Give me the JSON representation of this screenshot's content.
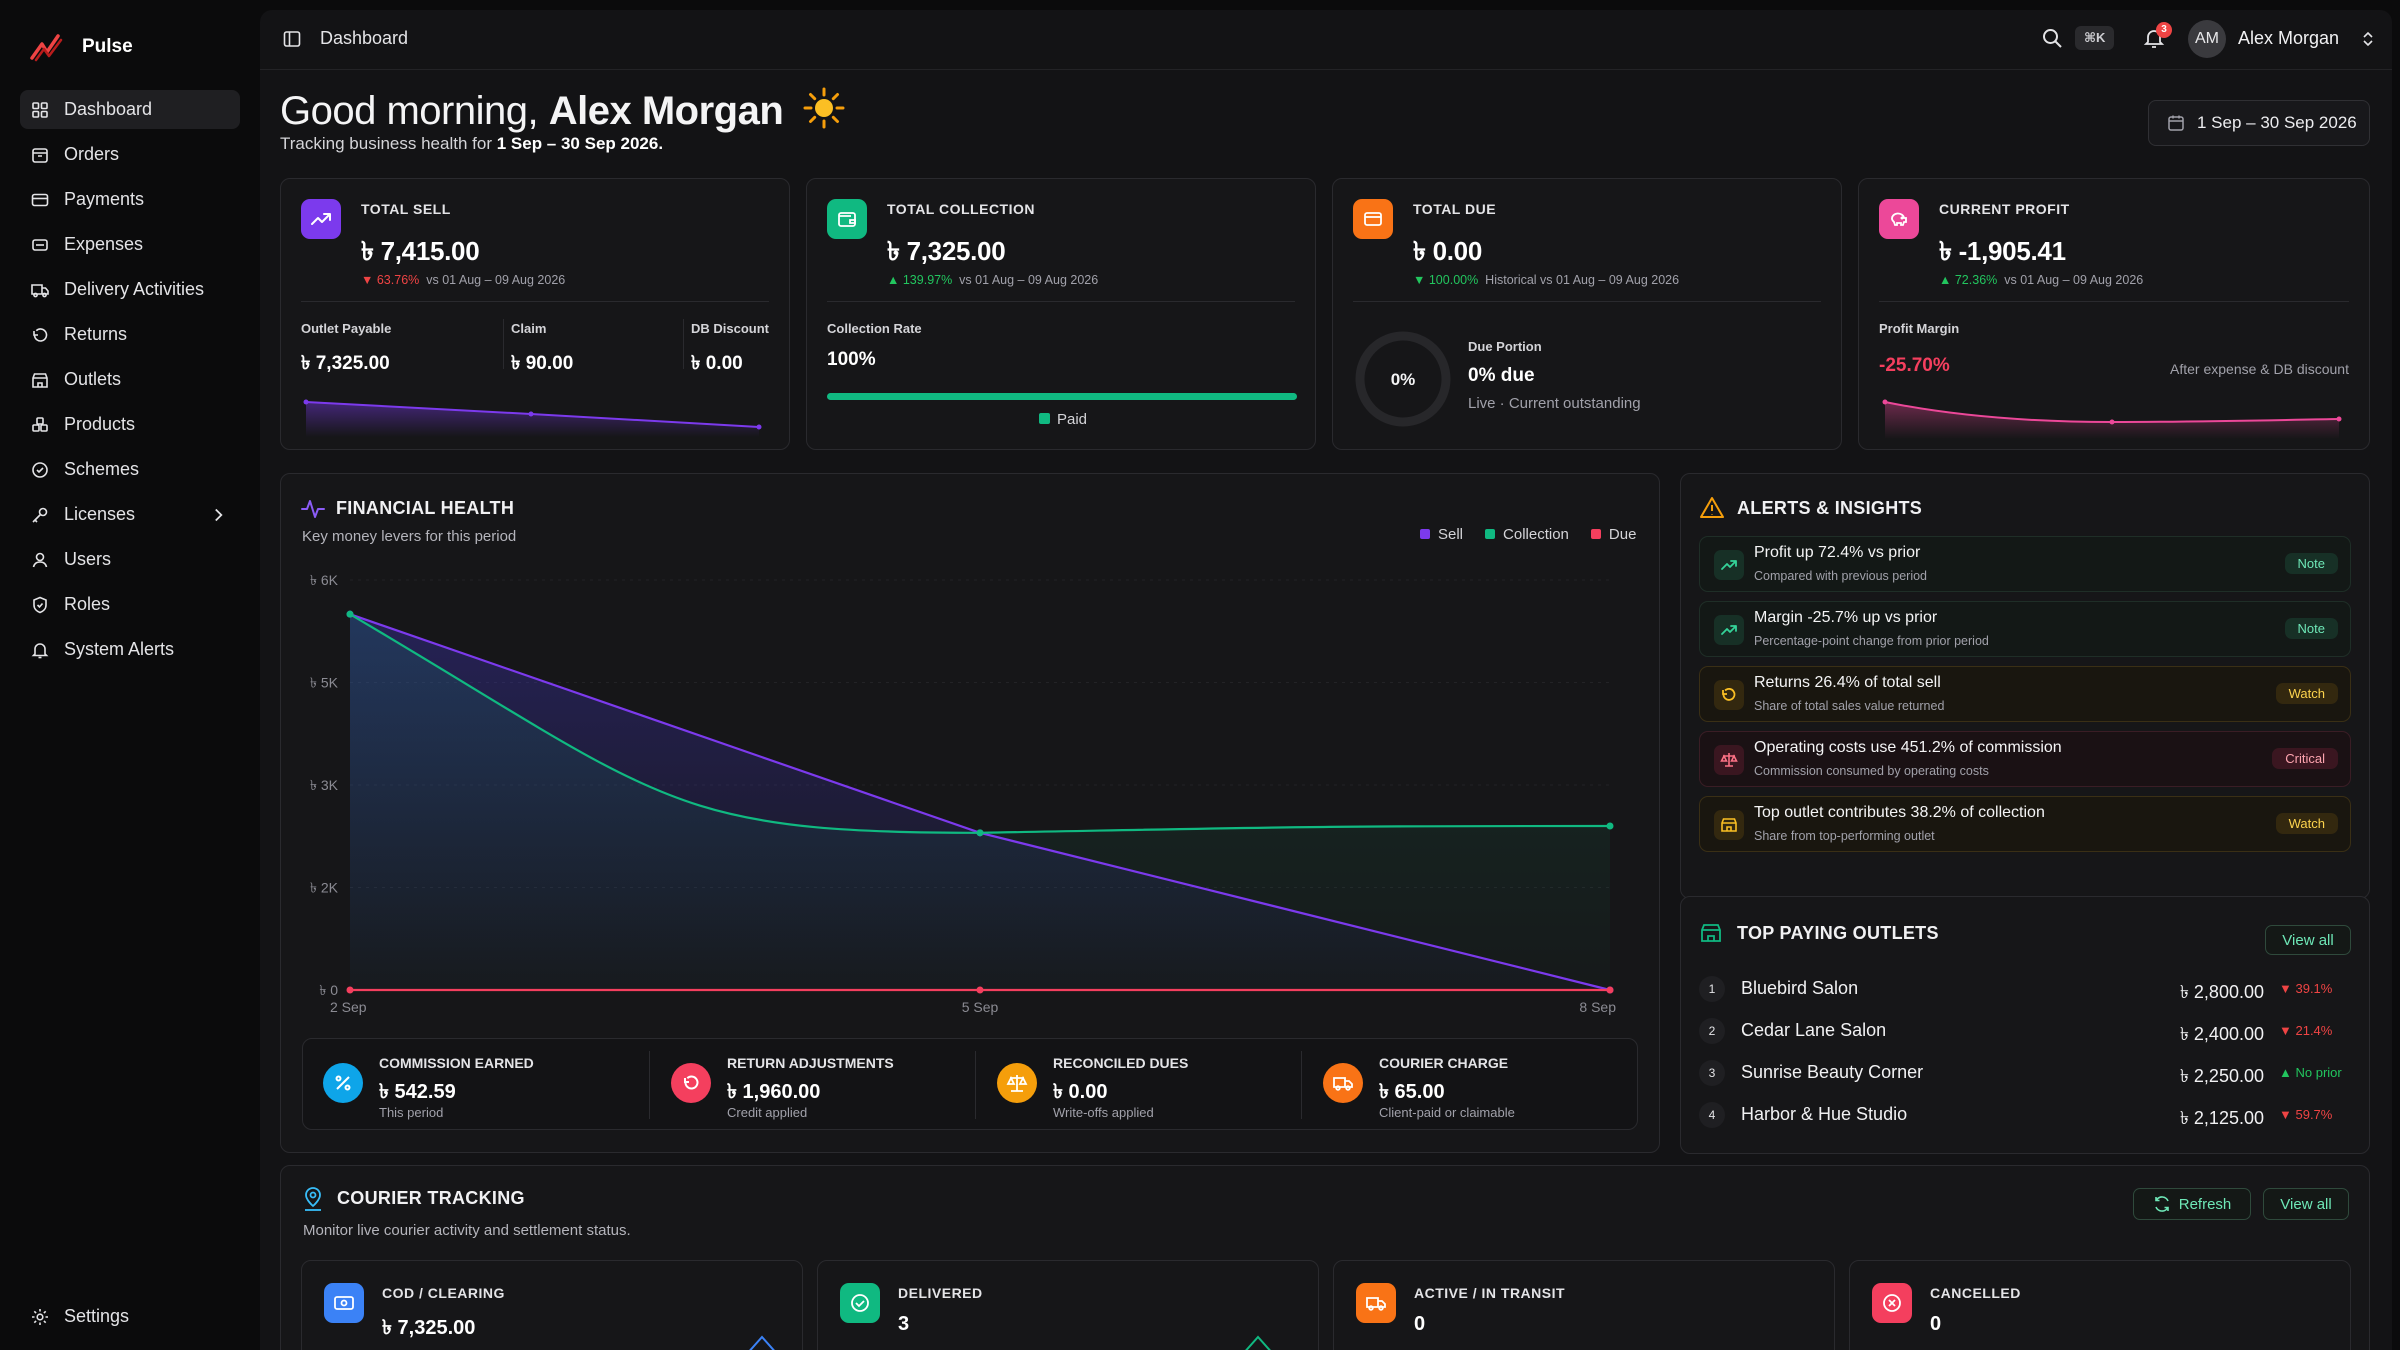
{
  "app": {
    "name": "Pulse",
    "brand_color": "#ef4444"
  },
  "sidebar": {
    "items": [
      {
        "label": "Dashboard",
        "icon": "grid-icon",
        "active": true
      },
      {
        "label": "Orders",
        "icon": "box-icon"
      },
      {
        "label": "Payments",
        "icon": "credit-card-icon"
      },
      {
        "label": "Expenses",
        "icon": "receipt-icon"
      },
      {
        "label": "Delivery Activities",
        "icon": "truck-icon"
      },
      {
        "label": "Returns",
        "icon": "undo-icon"
      },
      {
        "label": "Outlets",
        "icon": "store-icon"
      },
      {
        "label": "Products",
        "icon": "boxes-icon"
      },
      {
        "label": "Schemes",
        "icon": "badge-icon"
      },
      {
        "label": "Licenses",
        "icon": "key-icon",
        "has_children": true
      },
      {
        "label": "Users",
        "icon": "users-icon"
      },
      {
        "label": "Roles",
        "icon": "shield-icon"
      },
      {
        "label": "System Alerts",
        "icon": "bell-icon"
      }
    ],
    "settings_label": "Settings"
  },
  "topbar": {
    "breadcrumb": "Dashboard",
    "shortcut": "⌘K",
    "notification_count": "3",
    "user_initials": "AM",
    "user_name": "Alex Morgan"
  },
  "header": {
    "greeting_prefix": "Good morning,",
    "greeting_name": "Alex Morgan",
    "subline_prefix": "Tracking business health for",
    "period": "1 Sep – 30 Sep 2026.",
    "date_range": "1 Sep – 30 Sep 2026"
  },
  "kpis": {
    "sell": {
      "label": "TOTAL SELL",
      "value": "৳ 7,415.00",
      "change": "63.76%",
      "direction": "down",
      "compare": "vs 01 Aug – 09 Aug 2026",
      "subs": [
        {
          "label": "Outlet Payable",
          "value": "৳ 7,325.00"
        },
        {
          "label": "Claim",
          "value": "৳ 90.00"
        },
        {
          "label": "DB Discount",
          "value": "৳ 0.00"
        }
      ],
      "color": "#7c3aed"
    },
    "collection": {
      "label": "TOTAL COLLECTION",
      "value": "৳ 7,325.00",
      "change": "139.97%",
      "direction": "up",
      "compare": "vs 01 Aug – 09 Aug 2026",
      "rate_label": "Collection Rate",
      "rate_value": "100%",
      "rate": 1.0,
      "legend": "Paid",
      "color": "#10b981"
    },
    "due": {
      "label": "TOTAL DUE",
      "value": "৳ 0.00",
      "change": "100.00%",
      "direction": "down",
      "compare": "Historical vs 01 Aug – 09 Aug 2026",
      "donut_text": "0%",
      "portion_label": "Due Portion",
      "portion_value": "0% due",
      "portion_sub": "Live · Current outstanding",
      "color": "#f97316"
    },
    "profit": {
      "label": "CURRENT PROFIT",
      "value": "৳ -1,905.41",
      "change": "72.36%",
      "direction": "up",
      "compare": "vs 01 Aug – 09 Aug 2026",
      "margin_label": "Profit Margin",
      "margin_value": "-25.70%",
      "margin_note": "After expense & DB discount",
      "color": "#ec4899"
    }
  },
  "financial_health": {
    "title": "FINANCIAL HEALTH",
    "subtitle": "Key money levers for this period",
    "legend": [
      {
        "name": "Sell",
        "color": "#7c3aed"
      },
      {
        "name": "Collection",
        "color": "#10b981"
      },
      {
        "name": "Due",
        "color": "#f43f5e"
      }
    ],
    "summary": [
      {
        "label": "COMMISSION EARNED",
        "value": "৳ 542.59",
        "sub": "This period",
        "icon": "percent-icon",
        "color": "#0ea5e9"
      },
      {
        "label": "RETURN ADJUSTMENTS",
        "value": "৳ 1,960.00",
        "sub": "Credit applied",
        "icon": "undo-icon",
        "color": "#f43f5e"
      },
      {
        "label": "RECONCILED DUES",
        "value": "৳ 0.00",
        "sub": "Write-offs applied",
        "icon": "scale-icon",
        "color": "#f59e0b"
      },
      {
        "label": "COURIER CHARGE",
        "value": "৳ 65.00",
        "sub": "Client-paid or claimable",
        "icon": "truck-icon",
        "color": "#f97316"
      }
    ]
  },
  "chart_data": {
    "type": "area",
    "x": [
      "2 Sep",
      "5 Sep",
      "8 Sep"
    ],
    "series": [
      {
        "name": "Sell",
        "values": [
          5500,
          2300,
          0
        ]
      },
      {
        "name": "Collection",
        "values": [
          5500,
          2300,
          2400
        ]
      },
      {
        "name": "Due",
        "values": [
          0,
          0,
          0
        ]
      }
    ],
    "yticks": [
      "৳ 6K",
      "৳ 5K",
      "৳ 3K",
      "৳ 2K",
      "৳ 0"
    ],
    "ylim": [
      0,
      6000
    ],
    "grid": true,
    "legend_position": "top-right"
  },
  "alerts": {
    "title": "ALERTS & INSIGHTS",
    "items": [
      {
        "title": "Profit up 72.4% vs prior",
        "sub": "Compared with previous period",
        "badge": "Note",
        "kind": "note",
        "icon": "trend-up-icon"
      },
      {
        "title": "Margin -25.7% up vs prior",
        "sub": "Percentage-point change from prior period",
        "badge": "Note",
        "kind": "note",
        "icon": "trend-up-icon"
      },
      {
        "title": "Returns 26.4% of total sell",
        "sub": "Share of total sales value returned",
        "badge": "Watch",
        "kind": "watch",
        "icon": "undo-icon"
      },
      {
        "title": "Operating costs use 451.2% of commission",
        "sub": "Commission consumed by operating costs",
        "badge": "Critical",
        "kind": "critical",
        "icon": "scale-icon"
      },
      {
        "title": "Top outlet contributes 38.2% of collection",
        "sub": "Share from top-performing outlet",
        "badge": "Watch",
        "kind": "watch",
        "icon": "store-icon"
      }
    ]
  },
  "top_outlets": {
    "title": "TOP PAYING OUTLETS",
    "view_all": "View all",
    "rows": [
      {
        "rank": "1",
        "name": "Bluebird Salon",
        "amount": "৳ 2,800.00",
        "change": "39.1%",
        "direction": "down"
      },
      {
        "rank": "2",
        "name": "Cedar Lane Salon",
        "amount": "৳ 2,400.00",
        "change": "21.4%",
        "direction": "down"
      },
      {
        "rank": "3",
        "name": "Sunrise Beauty Corner",
        "amount": "৳ 2,250.00",
        "change": "No prior",
        "direction": "up"
      },
      {
        "rank": "4",
        "name": "Harbor & Hue Studio",
        "amount": "৳ 2,125.00",
        "change": "59.7%",
        "direction": "down"
      }
    ]
  },
  "courier": {
    "title": "COURIER TRACKING",
    "subtitle": "Monitor live courier activity and settlement status.",
    "refresh": "Refresh",
    "view_all": "View all",
    "cards": [
      {
        "label": "COD / CLEARING",
        "value": "৳ 7,325.00",
        "color": "#3b82f6",
        "icon": "cash-icon"
      },
      {
        "label": "DELIVERED",
        "value": "3",
        "color": "#10b981",
        "icon": "check-circle-icon"
      },
      {
        "label": "ACTIVE / IN TRANSIT",
        "value": "0",
        "color": "#f97316",
        "icon": "truck-icon"
      },
      {
        "label": "CANCELLED",
        "value": "0",
        "color": "#f43f5e",
        "icon": "x-circle-icon"
      }
    ]
  }
}
